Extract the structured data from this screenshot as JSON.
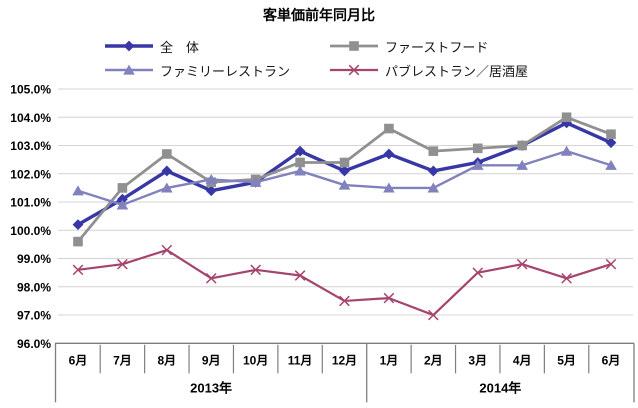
{
  "title": "客単価前年同月比",
  "chart_data": {
    "type": "line",
    "title": "客単価前年同月比",
    "categories": [
      "6月",
      "7月",
      "8月",
      "9月",
      "10月",
      "11月",
      "12月",
      "1月",
      "2月",
      "3月",
      "4月",
      "5月",
      "6月"
    ],
    "x_groups": [
      {
        "label": "2013年",
        "span": 7
      },
      {
        "label": "2014年",
        "span": 6
      }
    ],
    "y_ticks": [
      "105.0%",
      "104.0%",
      "103.0%",
      "102.0%",
      "101.0%",
      "100.0%",
      "99.0%",
      "98.0%",
      "97.0%",
      "96.0%"
    ],
    "ylim": [
      96.0,
      105.0
    ],
    "grid": "horizontal",
    "legend_position": "top",
    "colors": {
      "grid": "#d4d4d4",
      "axis": "#7f7f7f"
    },
    "series": [
      {
        "key": "total",
        "name": "全　体",
        "marker": "diamond",
        "color": "#3737a6",
        "line_width": 3.4,
        "values": [
          100.2,
          101.1,
          102.1,
          101.4,
          101.7,
          102.8,
          102.1,
          102.7,
          102.1,
          102.4,
          103.0,
          103.8,
          103.1
        ]
      },
      {
        "key": "fast-food",
        "name": "ファーストフード",
        "marker": "square",
        "color": "#909090",
        "line_width": 2.8,
        "values": [
          99.6,
          101.5,
          102.7,
          101.7,
          101.8,
          102.4,
          102.4,
          103.6,
          102.8,
          102.9,
          103.0,
          104.0,
          103.4
        ]
      },
      {
        "key": "family-restaurant",
        "name": "ファミリーレストラン",
        "marker": "triangle",
        "color": "#8181bd",
        "line_width": 2.4,
        "values": [
          101.4,
          100.9,
          101.5,
          101.8,
          101.7,
          102.1,
          101.6,
          101.5,
          101.5,
          102.3,
          102.3,
          102.8,
          102.3
        ]
      },
      {
        "key": "pub-izakaya",
        "name": "パブレストラン／居酒屋",
        "marker": "x",
        "color": "#a6446e",
        "line_width": 2.2,
        "values": [
          98.6,
          98.8,
          99.3,
          98.3,
          98.6,
          98.4,
          97.5,
          97.6,
          97.0,
          98.5,
          98.8,
          98.3,
          98.8
        ]
      }
    ]
  }
}
